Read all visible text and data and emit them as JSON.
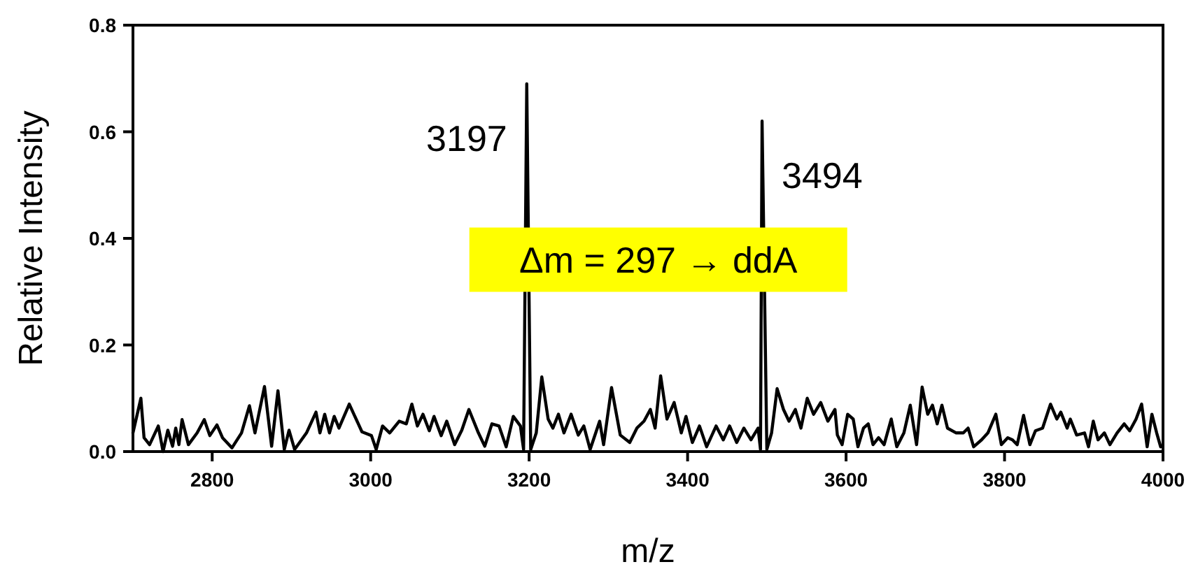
{
  "chart_data": {
    "type": "line",
    "xlabel": "m/z",
    "ylabel": "Relative Intensity",
    "xlim": [
      2700,
      4000
    ],
    "xticks": [
      2800,
      3000,
      3200,
      3400,
      3600,
      3800,
      4000
    ],
    "ylim": [
      0,
      0.8
    ],
    "yticks": [
      {
        "value": 0,
        "label": "0.0"
      },
      {
        "value": 0.2,
        "label": "0.2"
      },
      {
        "value": 0.4,
        "label": "0.4"
      },
      {
        "value": 0.6,
        "label": "0.6"
      },
      {
        "value": 0.8,
        "label": "0.8"
      }
    ],
    "grid": false,
    "line_style": "solid",
    "marker": "none",
    "series": [
      {
        "color": "#000000",
        "x": [
          2700,
          2710,
          2714,
          2721,
          2732,
          2738,
          2744,
          2750,
          2754,
          2758,
          2762,
          2770,
          2781,
          2790,
          2797,
          2806,
          2813,
          2825,
          2837,
          2847,
          2854,
          2866,
          2875,
          2883,
          2891,
          2897,
          2904,
          2919,
          2931,
          2936,
          2942,
          2948,
          2954,
          2960,
          2973,
          2989,
          3001,
          3007,
          3015,
          3024,
          3036,
          3045,
          3052,
          3059,
          3066,
          3074,
          3080,
          3089,
          3096,
          3106,
          3115,
          3124,
          3136,
          3144,
          3153,
          3162,
          3171,
          3180,
          3189,
          3193,
          3197,
          3202,
          3209,
          3216,
          3224,
          3230,
          3237,
          3244,
          3253,
          3262,
          3269,
          3277,
          3289,
          3294,
          3304,
          3315,
          3327,
          3336,
          3345,
          3353,
          3359,
          3366,
          3374,
          3383,
          3392,
          3398,
          3406,
          3415,
          3424,
          3436,
          3445,
          3453,
          3462,
          3471,
          3480,
          3489,
          3492,
          3494,
          3500,
          3506,
          3513,
          3521,
          3528,
          3536,
          3543,
          3551,
          3559,
          3568,
          3577,
          3586,
          3589,
          3595,
          3602,
          3609,
          3615,
          3622,
          3628,
          3634,
          3641,
          3648,
          3657,
          3664,
          3673,
          3681,
          3689,
          3696,
          3703,
          3709,
          3715,
          3721,
          3728,
          3739,
          3748,
          3754,
          3761,
          3771,
          3779,
          3789,
          3796,
          3804,
          3810,
          3816,
          3824,
          3832,
          3839,
          3848,
          3858,
          3866,
          3871,
          3879,
          3883,
          3891,
          3901,
          3906,
          3912,
          3918,
          3926,
          3933,
          3942,
          3951,
          3958,
          3966,
          3973,
          3980,
          3986,
          3992,
          3997
        ],
        "values": [
          0.035,
          0.1,
          0.026,
          0.013,
          0.048,
          0.0,
          0.04,
          0.01,
          0.044,
          0.013,
          0.06,
          0.013,
          0.035,
          0.06,
          0.03,
          0.05,
          0.026,
          0.007,
          0.035,
          0.086,
          0.035,
          0.122,
          0.01,
          0.114,
          0.004,
          0.04,
          0.004,
          0.035,
          0.074,
          0.035,
          0.07,
          0.035,
          0.066,
          0.044,
          0.089,
          0.037,
          0.03,
          0.004,
          0.048,
          0.035,
          0.057,
          0.052,
          0.089,
          0.048,
          0.07,
          0.039,
          0.066,
          0.03,
          0.057,
          0.013,
          0.04,
          0.079,
          0.035,
          0.01,
          0.052,
          0.048,
          0.009,
          0.066,
          0.048,
          0.004,
          0.69,
          0.004,
          0.035,
          0.14,
          0.061,
          0.044,
          0.07,
          0.035,
          0.07,
          0.031,
          0.048,
          0.004,
          0.057,
          0.013,
          0.12,
          0.031,
          0.017,
          0.044,
          0.057,
          0.079,
          0.044,
          0.142,
          0.061,
          0.092,
          0.035,
          0.066,
          0.017,
          0.048,
          0.009,
          0.048,
          0.022,
          0.048,
          0.017,
          0.044,
          0.022,
          0.044,
          0.004,
          0.62,
          0.004,
          0.035,
          0.118,
          0.079,
          0.057,
          0.079,
          0.044,
          0.1,
          0.07,
          0.092,
          0.057,
          0.079,
          0.031,
          0.013,
          0.07,
          0.061,
          0.009,
          0.044,
          0.052,
          0.013,
          0.026,
          0.013,
          0.061,
          0.009,
          0.035,
          0.087,
          0.013,
          0.121,
          0.07,
          0.087,
          0.052,
          0.087,
          0.044,
          0.035,
          0.035,
          0.044,
          0.009,
          0.022,
          0.035,
          0.07,
          0.013,
          0.026,
          0.022,
          0.013,
          0.068,
          0.013,
          0.039,
          0.044,
          0.089,
          0.061,
          0.074,
          0.044,
          0.061,
          0.031,
          0.035,
          0.009,
          0.057,
          0.022,
          0.035,
          0.013,
          0.035,
          0.052,
          0.039,
          0.061,
          0.089,
          0.009,
          0.07,
          0.035,
          0.009
        ]
      }
    ],
    "annotations": [
      {
        "text": "3197",
        "x": 3197,
        "y": 0.69
      },
      {
        "text": "3494",
        "x": 3494,
        "y": 0.62
      },
      "Δm = 297 → ddA"
    ]
  }
}
